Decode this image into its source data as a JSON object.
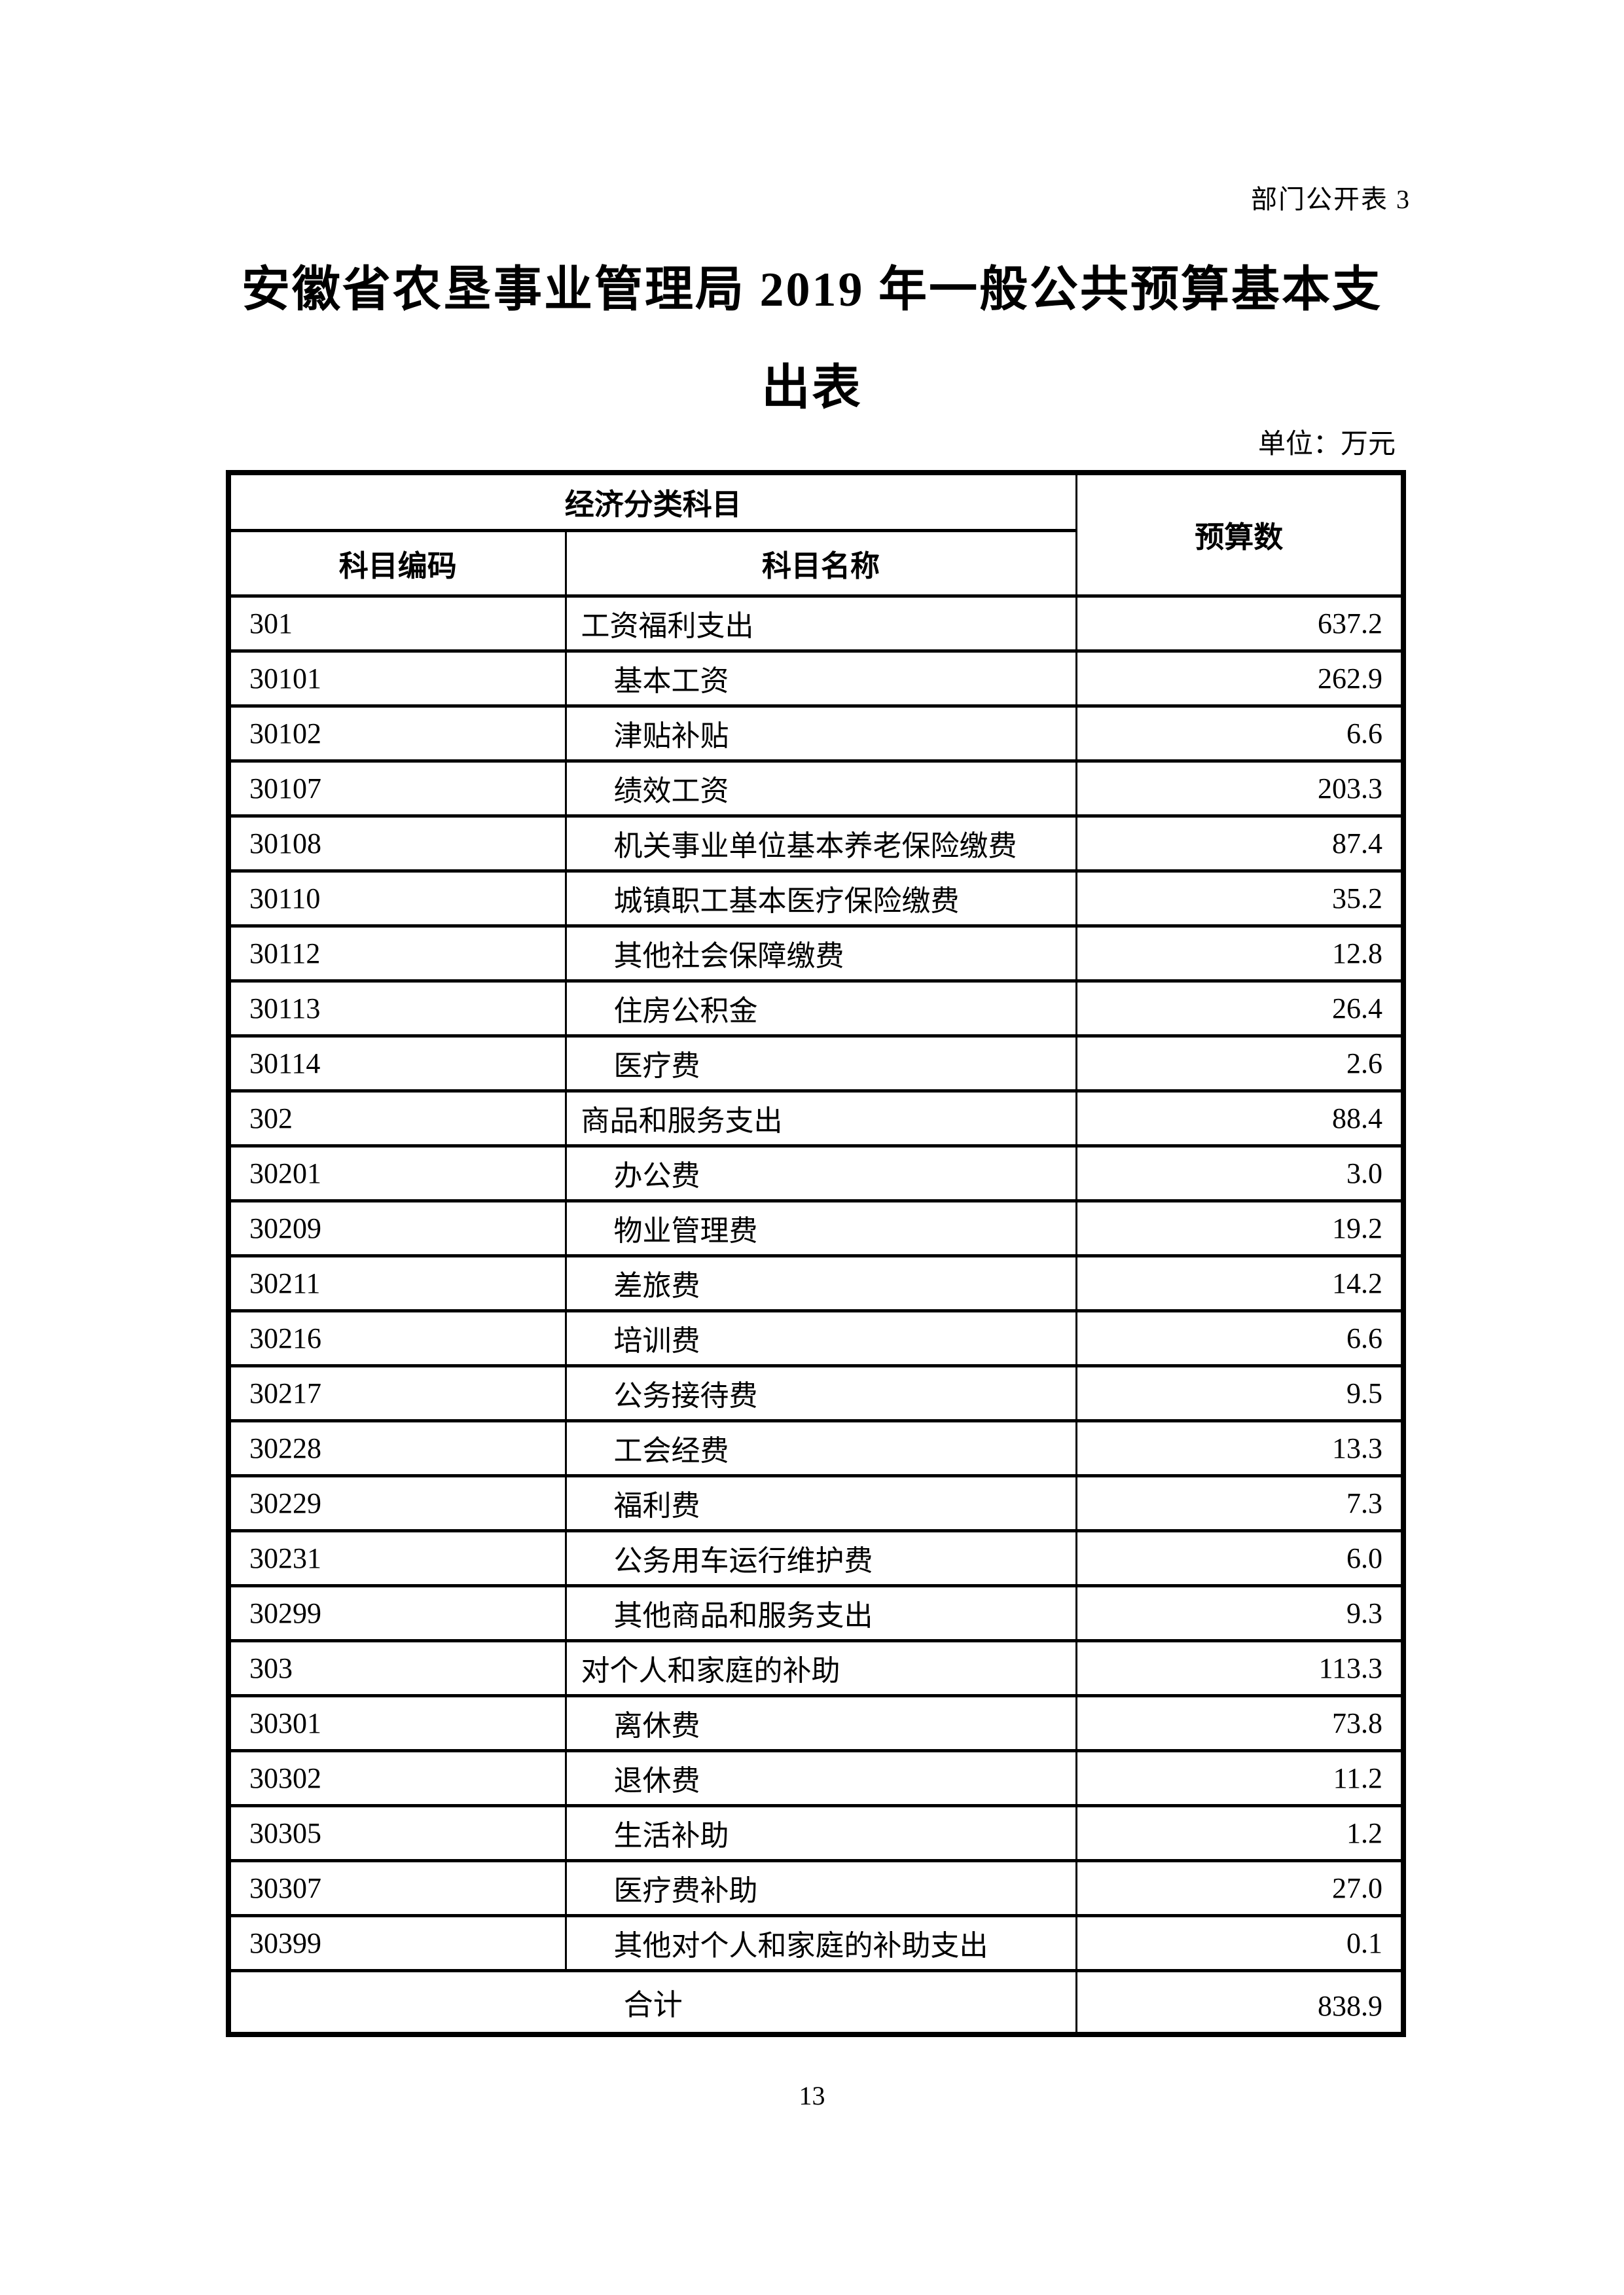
{
  "page": {
    "annotation": "部门公开表 3",
    "title_line1": "安徽省农垦事业管理局 2019 年一般公共预算基本支",
    "title_line2": "出表",
    "unit_note": "单位：万元",
    "page_number": "13"
  },
  "colors": {
    "ink": "#000000",
    "paper": "#ffffff"
  },
  "table": {
    "header": {
      "group": "经济分类科目",
      "code": "科目编码",
      "name": "科目名称",
      "budget": "预算数"
    },
    "rows": [
      {
        "code": "301",
        "name": "工资福利支出",
        "value": "637.2",
        "level": 0
      },
      {
        "code": "30101",
        "name": "基本工资",
        "value": "262.9",
        "level": 1
      },
      {
        "code": "30102",
        "name": "津贴补贴",
        "value": "6.6",
        "level": 1
      },
      {
        "code": "30107",
        "name": "绩效工资",
        "value": "203.3",
        "level": 1
      },
      {
        "code": "30108",
        "name": "机关事业单位基本养老保险缴费",
        "value": "87.4",
        "level": 1
      },
      {
        "code": "30110",
        "name": "城镇职工基本医疗保险缴费",
        "value": "35.2",
        "level": 1
      },
      {
        "code": "30112",
        "name": "其他社会保障缴费",
        "value": "12.8",
        "level": 1
      },
      {
        "code": "30113",
        "name": "住房公积金",
        "value": "26.4",
        "level": 1
      },
      {
        "code": "30114",
        "name": "医疗费",
        "value": "2.6",
        "level": 1
      },
      {
        "code": "302",
        "name": "商品和服务支出",
        "value": "88.4",
        "level": 0
      },
      {
        "code": "30201",
        "name": "办公费",
        "value": "3.0",
        "level": 1
      },
      {
        "code": "30209",
        "name": "物业管理费",
        "value": "19.2",
        "level": 1
      },
      {
        "code": "30211",
        "name": "差旅费",
        "value": "14.2",
        "level": 1
      },
      {
        "code": "30216",
        "name": "培训费",
        "value": "6.6",
        "level": 1
      },
      {
        "code": "30217",
        "name": "公务接待费",
        "value": "9.5",
        "level": 1
      },
      {
        "code": "30228",
        "name": "工会经费",
        "value": "13.3",
        "level": 1
      },
      {
        "code": "30229",
        "name": "福利费",
        "value": "7.3",
        "level": 1
      },
      {
        "code": "30231",
        "name": "公务用车运行维护费",
        "value": "6.0",
        "level": 1
      },
      {
        "code": "30299",
        "name": "其他商品和服务支出",
        "value": "9.3",
        "level": 1
      },
      {
        "code": "303",
        "name": "对个人和家庭的补助",
        "value": "113.3",
        "level": 0
      },
      {
        "code": "30301",
        "name": "离休费",
        "value": "73.8",
        "level": 1
      },
      {
        "code": "30302",
        "name": "退休费",
        "value": "11.2",
        "level": 1
      },
      {
        "code": "30305",
        "name": "生活补助",
        "value": "1.2",
        "level": 1
      },
      {
        "code": "30307",
        "name": "医疗费补助",
        "value": "27.0",
        "level": 1
      },
      {
        "code": "30399",
        "name": "其他对个人和家庭的补助支出",
        "value": "0.1",
        "level": 1
      }
    ],
    "total": {
      "label": "合计",
      "value": "838.9"
    }
  }
}
